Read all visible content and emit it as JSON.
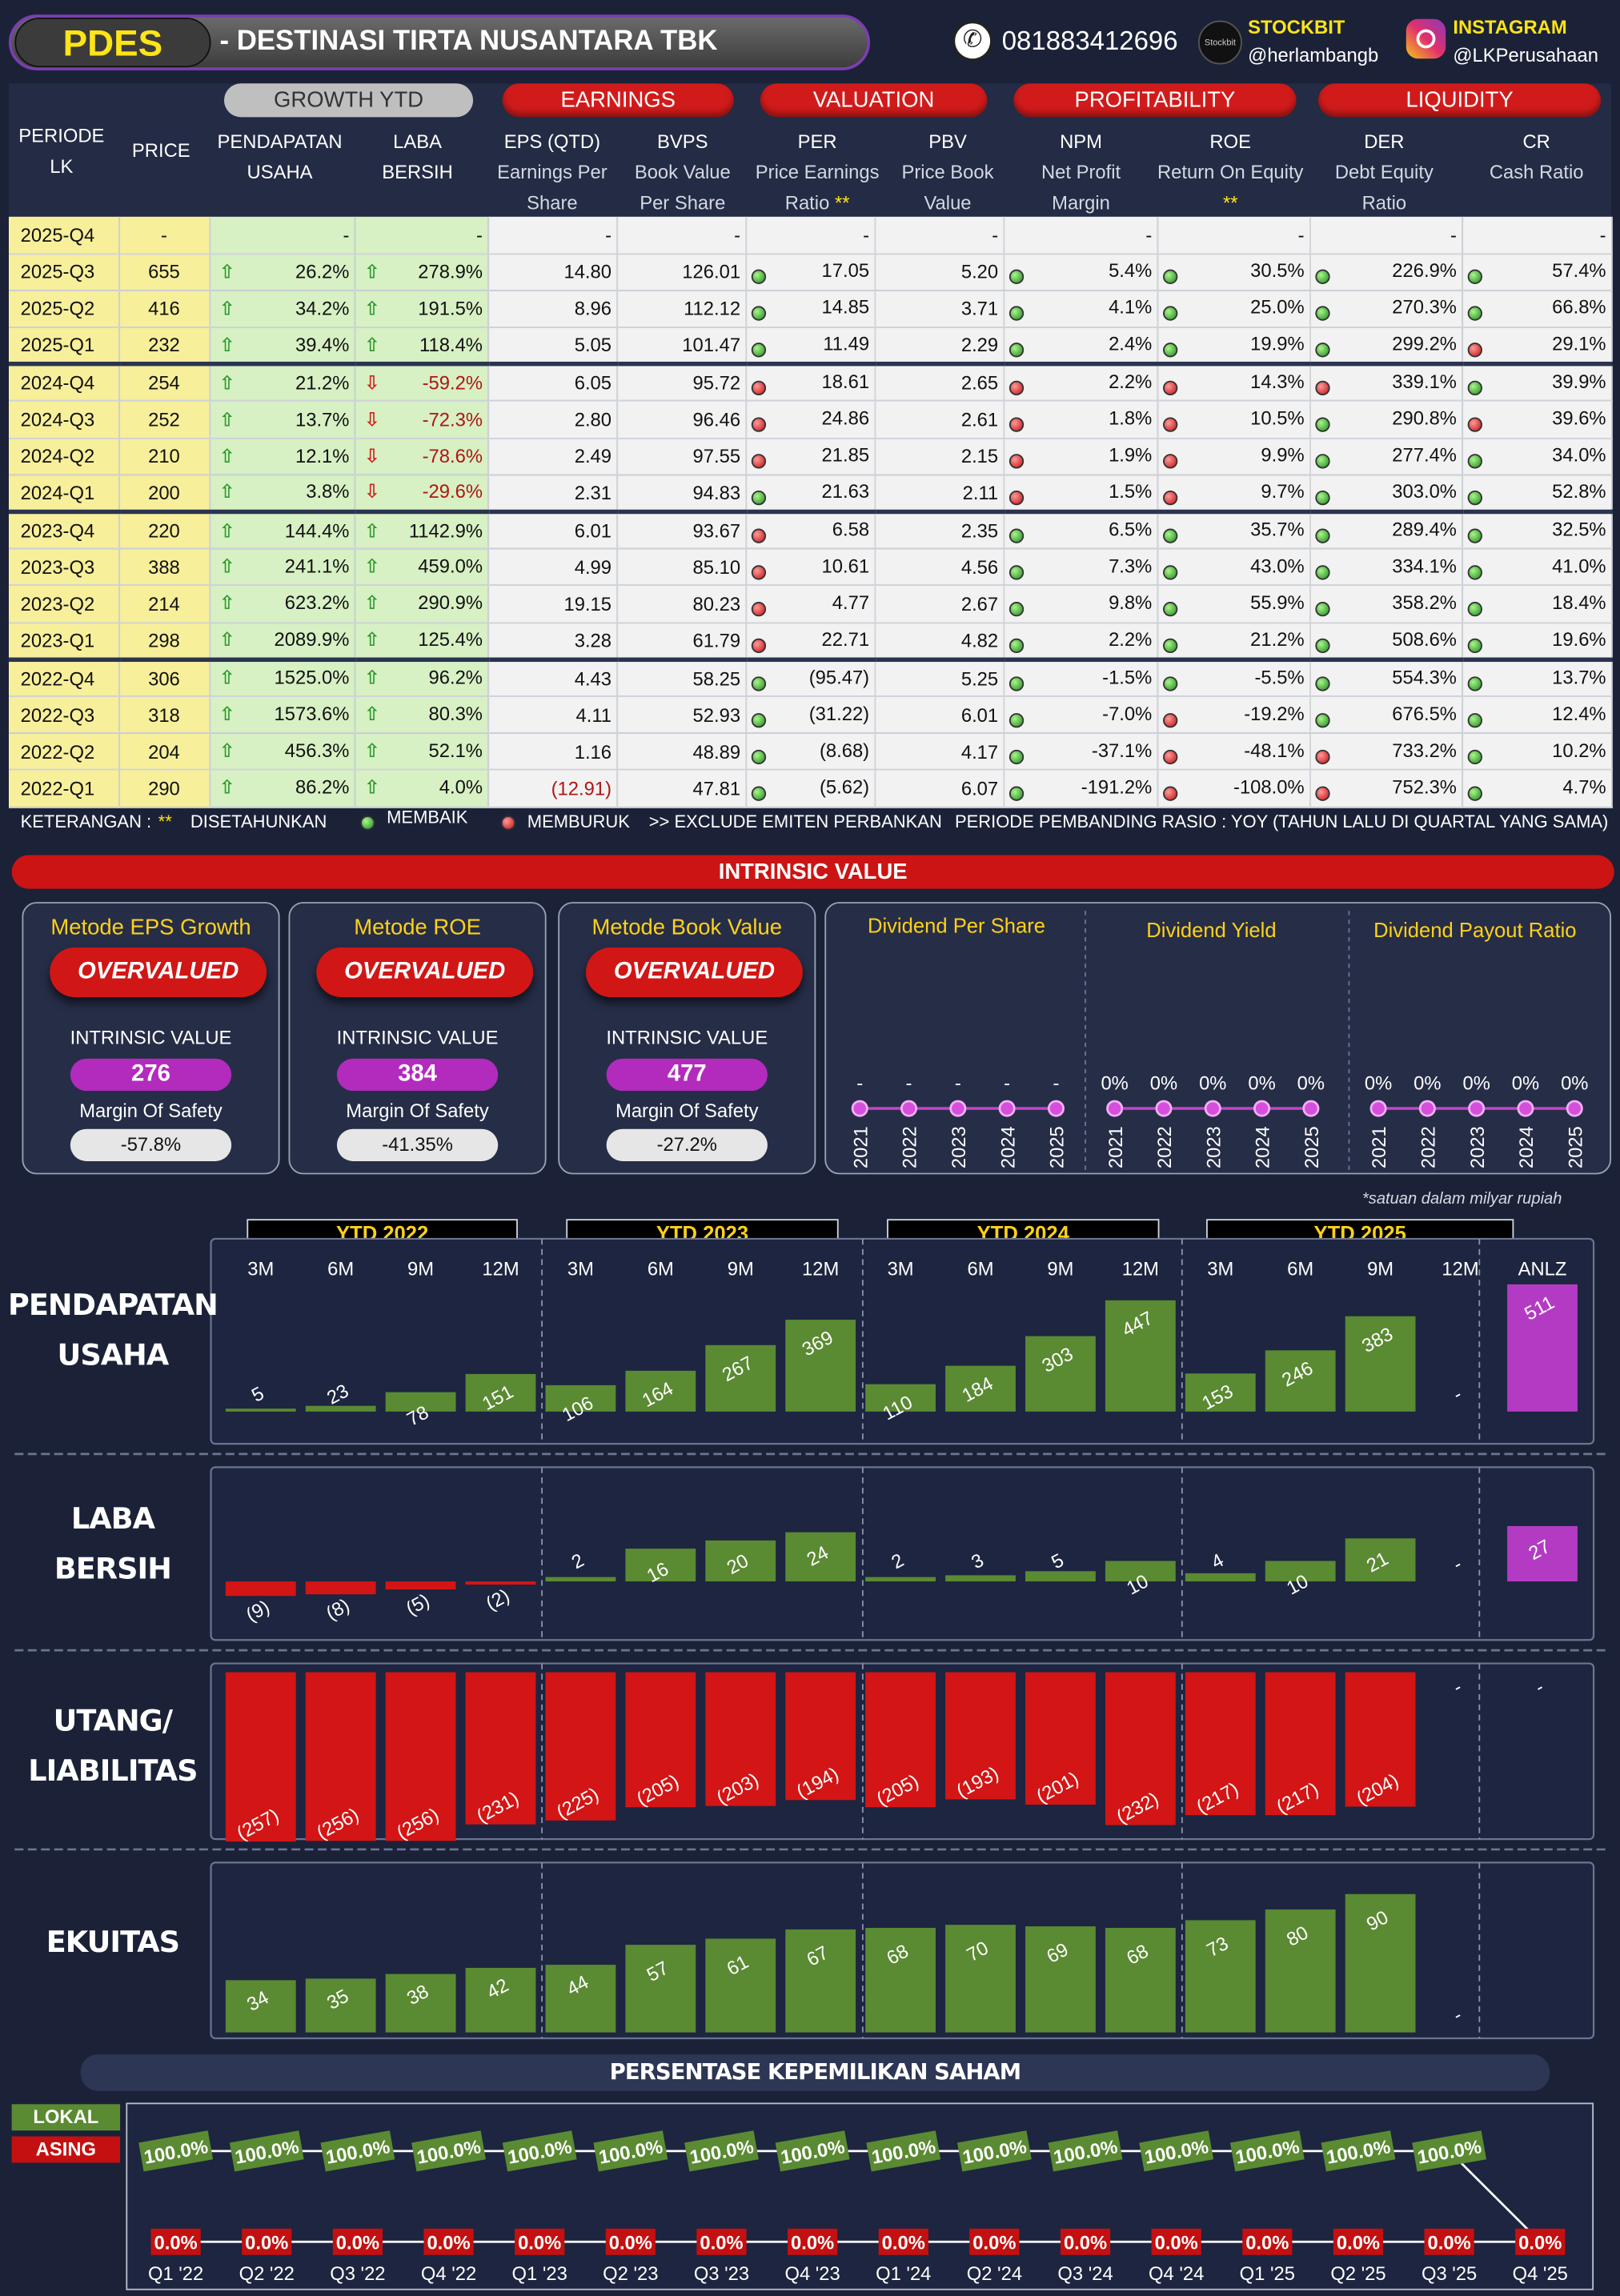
{
  "header": {
    "ticker": "PDES",
    "name": "-  DESTINASI TIRTA NUSANTARA TBK",
    "phone": "081883412696",
    "stockbit_label": "STOCKBIT",
    "stockbit_handle": "@herlambangb",
    "stockbit_logo": "Stockbit",
    "instagram_label": "INSTAGRAM",
    "instagram_handle": "@LKPerusahaan"
  },
  "groups": {
    "growth": "GROWTH YTD",
    "earnings": "EARNINGS",
    "valuation": "VALUATION",
    "profitability": "PROFITABILITY",
    "liquidity": "LIQUIDITY"
  },
  "columns": {
    "periode": "PERIODE LK",
    "price": "PRICE",
    "pu": "PENDAPATAN USAHA",
    "lb": "LABA BERSIH",
    "eps": "EPS (QTD)",
    "eps_sub": "Earnings Per Share",
    "bvps": "BVPS",
    "bvps_sub": "Book Value Per Share",
    "per": "PER",
    "per_sub": "Price Earnings Ratio",
    "per_star": "**",
    "pbv": "PBV",
    "pbv_sub": "Price Book Value",
    "npm": "NPM",
    "npm_sub": "Net Profit Margin",
    "roe": "ROE",
    "roe_sub": "Return On Equity",
    "roe_star": "**",
    "der": "DER",
    "der_sub": "Debt Equity Ratio",
    "cr": "CR",
    "cr_sub": "Cash Ratio"
  },
  "rows": [
    {
      "p": "2025-Q4",
      "price": "-",
      "pu": "-",
      "lb": "-",
      "eps": "-",
      "bvps": "-",
      "per": "-",
      "pbv": "-",
      "npm": "-",
      "roe": "-",
      "der": "-",
      "cr": "-",
      "pua": "",
      "lba": "",
      "perd": "",
      "npmd": "",
      "roed": "",
      "derd": "",
      "crd": ""
    },
    {
      "p": "2025-Q3",
      "price": "655",
      "pu": "26.2%",
      "lb": "278.9%",
      "eps": "14.80",
      "bvps": "126.01",
      "per": "17.05",
      "pbv": "5.20",
      "npm": "5.4%",
      "roe": "30.5%",
      "der": "226.9%",
      "cr": "57.4%",
      "pua": "up",
      "lba": "up",
      "perd": "g",
      "npmd": "g",
      "roed": "g",
      "derd": "g",
      "crd": "g"
    },
    {
      "p": "2025-Q2",
      "price": "416",
      "pu": "34.2%",
      "lb": "191.5%",
      "eps": "8.96",
      "bvps": "112.12",
      "per": "14.85",
      "pbv": "3.71",
      "npm": "4.1%",
      "roe": "25.0%",
      "der": "270.3%",
      "cr": "66.8%",
      "pua": "up",
      "lba": "up",
      "perd": "g",
      "npmd": "g",
      "roed": "g",
      "derd": "g",
      "crd": "g"
    },
    {
      "p": "2025-Q1",
      "price": "232",
      "pu": "39.4%",
      "lb": "118.4%",
      "eps": "5.05",
      "bvps": "101.47",
      "per": "11.49",
      "pbv": "2.29",
      "npm": "2.4%",
      "roe": "19.9%",
      "der": "299.2%",
      "cr": "29.1%",
      "pua": "up",
      "lba": "up",
      "perd": "g",
      "npmd": "g",
      "roed": "g",
      "derd": "g",
      "crd": "r"
    },
    {
      "p": "2024-Q4",
      "price": "254",
      "pu": "21.2%",
      "lb": "-59.2%",
      "eps": "6.05",
      "bvps": "95.72",
      "per": "18.61",
      "pbv": "2.65",
      "npm": "2.2%",
      "roe": "14.3%",
      "der": "339.1%",
      "cr": "39.9%",
      "pua": "up",
      "lba": "dn",
      "perd": "r",
      "npmd": "r",
      "roed": "r",
      "derd": "r",
      "crd": "g"
    },
    {
      "p": "2024-Q3",
      "price": "252",
      "pu": "13.7%",
      "lb": "-72.3%",
      "eps": "2.80",
      "bvps": "96.46",
      "per": "24.86",
      "pbv": "2.61",
      "npm": "1.8%",
      "roe": "10.5%",
      "der": "290.8%",
      "cr": "39.6%",
      "pua": "up",
      "lba": "dn",
      "perd": "r",
      "npmd": "r",
      "roed": "r",
      "derd": "g",
      "crd": "r"
    },
    {
      "p": "2024-Q2",
      "price": "210",
      "pu": "12.1%",
      "lb": "-78.6%",
      "eps": "2.49",
      "bvps": "97.55",
      "per": "21.85",
      "pbv": "2.15",
      "npm": "1.9%",
      "roe": "9.9%",
      "der": "277.4%",
      "cr": "34.0%",
      "pua": "up",
      "lba": "dn",
      "perd": "r",
      "npmd": "r",
      "roed": "r",
      "derd": "g",
      "crd": "g"
    },
    {
      "p": "2024-Q1",
      "price": "200",
      "pu": "3.8%",
      "lb": "-29.6%",
      "eps": "2.31",
      "bvps": "94.83",
      "per": "21.63",
      "pbv": "2.11",
      "npm": "1.5%",
      "roe": "9.7%",
      "der": "303.0%",
      "cr": "52.8%",
      "pua": "up",
      "lba": "dn",
      "perd": "g",
      "npmd": "r",
      "roed": "r",
      "derd": "g",
      "crd": "g"
    },
    {
      "p": "2023-Q4",
      "price": "220",
      "pu": "144.4%",
      "lb": "1142.9%",
      "eps": "6.01",
      "bvps": "93.67",
      "per": "6.58",
      "pbv": "2.35",
      "npm": "6.5%",
      "roe": "35.7%",
      "der": "289.4%",
      "cr": "32.5%",
      "pua": "up",
      "lba": "up",
      "perd": "r",
      "npmd": "g",
      "roed": "g",
      "derd": "g",
      "crd": "g"
    },
    {
      "p": "2023-Q3",
      "price": "388",
      "pu": "241.1%",
      "lb": "459.0%",
      "eps": "4.99",
      "bvps": "85.10",
      "per": "10.61",
      "pbv": "4.56",
      "npm": "7.3%",
      "roe": "43.0%",
      "der": "334.1%",
      "cr": "41.0%",
      "pua": "up",
      "lba": "up",
      "perd": "r",
      "npmd": "g",
      "roed": "g",
      "derd": "g",
      "crd": "g"
    },
    {
      "p": "2023-Q2",
      "price": "214",
      "pu": "623.2%",
      "lb": "290.9%",
      "eps": "19.15",
      "bvps": "80.23",
      "per": "4.77",
      "pbv": "2.67",
      "npm": "9.8%",
      "roe": "55.9%",
      "der": "358.2%",
      "cr": "18.4%",
      "pua": "up",
      "lba": "up",
      "perd": "r",
      "npmd": "g",
      "roed": "g",
      "derd": "g",
      "crd": "g"
    },
    {
      "p": "2023-Q1",
      "price": "298",
      "pu": "2089.9%",
      "lb": "125.4%",
      "eps": "3.28",
      "bvps": "61.79",
      "per": "22.71",
      "pbv": "4.82",
      "npm": "2.2%",
      "roe": "21.2%",
      "der": "508.6%",
      "cr": "19.6%",
      "pua": "up",
      "lba": "up",
      "perd": "r",
      "npmd": "g",
      "roed": "g",
      "derd": "g",
      "crd": "g"
    },
    {
      "p": "2022-Q4",
      "price": "306",
      "pu": "1525.0%",
      "lb": "96.2%",
      "eps": "4.43",
      "bvps": "58.25",
      "per": "(95.47)",
      "pbv": "5.25",
      "npm": "-1.5%",
      "roe": "-5.5%",
      "der": "554.3%",
      "cr": "13.7%",
      "pua": "up",
      "lba": "up",
      "perd": "g",
      "npmd": "g",
      "roed": "g",
      "derd": "g",
      "crd": "g"
    },
    {
      "p": "2022-Q3",
      "price": "318",
      "pu": "1573.6%",
      "lb": "80.3%",
      "eps": "4.11",
      "bvps": "52.93",
      "per": "(31.22)",
      "pbv": "6.01",
      "npm": "-7.0%",
      "roe": "-19.2%",
      "der": "676.5%",
      "cr": "12.4%",
      "pua": "up",
      "lba": "up",
      "perd": "g",
      "npmd": "g",
      "roed": "r",
      "derd": "g",
      "crd": "g"
    },
    {
      "p": "2022-Q2",
      "price": "204",
      "pu": "456.3%",
      "lb": "52.1%",
      "eps": "1.16",
      "bvps": "48.89",
      "per": "(8.68)",
      "pbv": "4.17",
      "npm": "-37.1%",
      "roe": "-48.1%",
      "der": "733.2%",
      "cr": "10.2%",
      "pua": "up",
      "lba": "up",
      "perd": "g",
      "npmd": "g",
      "roed": "r",
      "derd": "r",
      "crd": "g"
    },
    {
      "p": "2022-Q1",
      "price": "290",
      "pu": "86.2%",
      "lb": "4.0%",
      "eps": "(12.91)",
      "bvps": "47.81",
      "per": "(5.62)",
      "pbv": "6.07",
      "npm": "-191.2%",
      "roe": "-108.0%",
      "der": "752.3%",
      "cr": "4.7%",
      "pua": "up",
      "lba": "up",
      "perd": "g",
      "npmd": "g",
      "roed": "r",
      "derd": "r",
      "crd": "g"
    }
  ],
  "legend": {
    "keterangan": "KETERANGAN :",
    "stars": "**",
    "disetahunkan": "DISETAHUNKAN",
    "membaik": "MEMBAIK",
    "memburuk": "MEMBURUK",
    "exclude": ">> EXCLUDE EMITEN PERBANKAN",
    "periode": "PERIODE PEMBANDING RASIO : YOY (TAHUN LALU DI QUARTAL YANG SAMA)"
  },
  "intrinsic": {
    "title": "INTRINSIC VALUE",
    "iv_label": "INTRINSIC VALUE",
    "mos_label": "Margin Of Safety",
    "methods": [
      {
        "title": "Metode EPS Growth",
        "status": "OVERVALUED",
        "value": "276",
        "mos": "-57.8%"
      },
      {
        "title": "Metode ROE",
        "status": "OVERVALUED",
        "value": "384",
        "mos": "-41.35%"
      },
      {
        "title": "Metode Book Value",
        "status": "OVERVALUED",
        "value": "477",
        "mos": "-27.2%"
      }
    ]
  },
  "dividend": {
    "years": [
      "2021",
      "2022",
      "2023",
      "2024",
      "2025"
    ],
    "panels": [
      {
        "title": "Dividend Per Share",
        "values": [
          "-",
          "-",
          "-",
          "-",
          "-"
        ]
      },
      {
        "title": "Dividend Yield",
        "values": [
          "0%",
          "0%",
          "0%",
          "0%",
          "0%"
        ]
      },
      {
        "title": "Dividend Payout Ratio",
        "values": [
          "0%",
          "0%",
          "0%",
          "0%",
          "0%"
        ]
      }
    ]
  },
  "note": "*satuan dalam milyar rupiah",
  "colors": {
    "pos": "#5a8a32",
    "neg": "#d31515",
    "anlz": "#b33bc4",
    "lokal": "#5a8a32",
    "asing": "#c41010"
  },
  "chart_data": [
    {
      "type": "bar",
      "title": "PENDAPATAN USAHA",
      "groups": [
        "YTD 2022",
        "YTD 2023",
        "YTD 2024",
        "YTD 2025"
      ],
      "categories": [
        "3M",
        "6M",
        "9M",
        "12M",
        "3M",
        "6M",
        "9M",
        "12M",
        "3M",
        "6M",
        "9M",
        "12M",
        "3M",
        "6M",
        "9M",
        "12M",
        "ANLZ"
      ],
      "values": [
        5,
        23,
        78,
        151,
        106,
        164,
        267,
        369,
        110,
        184,
        303,
        447,
        153,
        246,
        383,
        null,
        511
      ],
      "labels": [
        "5",
        "23",
        "78",
        "151",
        "106",
        "164",
        "267",
        "369",
        "110",
        "184",
        "303",
        "447",
        "153",
        "246",
        "383",
        "-",
        "511"
      ]
    },
    {
      "type": "bar",
      "title": "LABA BERSIH",
      "categories": [
        "3M",
        "6M",
        "9M",
        "12M",
        "3M",
        "6M",
        "9M",
        "12M",
        "3M",
        "6M",
        "9M",
        "12M",
        "3M",
        "6M",
        "9M",
        "12M",
        "ANLZ"
      ],
      "values": [
        -9,
        -8,
        -5,
        -2,
        2,
        16,
        20,
        24,
        2,
        3,
        5,
        10,
        4,
        10,
        21,
        null,
        27
      ],
      "labels": [
        "(9)",
        "(8)",
        "(5)",
        "(2)",
        "2",
        "16",
        "20",
        "24",
        "2",
        "3",
        "5",
        "10",
        "4",
        "10",
        "21",
        "-",
        "27"
      ]
    },
    {
      "type": "bar",
      "title": "UTANG/ LIABILITAS",
      "categories": [
        "3M",
        "6M",
        "9M",
        "12M",
        "3M",
        "6M",
        "9M",
        "12M",
        "3M",
        "6M",
        "9M",
        "12M",
        "3M",
        "6M",
        "9M",
        "12M",
        "ANLZ"
      ],
      "values": [
        -257,
        -256,
        -256,
        -231,
        -225,
        -205,
        -203,
        -194,
        -205,
        -193,
        -201,
        -232,
        -217,
        -217,
        -204,
        null,
        null
      ],
      "labels": [
        "(257)",
        "(256)",
        "(256)",
        "(231)",
        "(225)",
        "(205)",
        "(203)",
        "(194)",
        "(205)",
        "(193)",
        "(201)",
        "(232)",
        "(217)",
        "(217)",
        "(204)",
        "-",
        "-"
      ]
    },
    {
      "type": "bar",
      "title": "EKUITAS",
      "categories": [
        "3M",
        "6M",
        "9M",
        "12M",
        "3M",
        "6M",
        "9M",
        "12M",
        "3M",
        "6M",
        "9M",
        "12M",
        "3M",
        "6M",
        "9M",
        "12M",
        "ANLZ"
      ],
      "values": [
        34,
        35,
        38,
        42,
        44,
        57,
        61,
        67,
        68,
        70,
        69,
        68,
        73,
        80,
        90,
        null,
        null
      ],
      "labels": [
        "34",
        "35",
        "38",
        "42",
        "44",
        "57",
        "61",
        "67",
        "68",
        "70",
        "69",
        "68",
        "73",
        "80",
        "90",
        "-",
        ""
      ]
    },
    {
      "type": "line",
      "title": "PERSENTASE KEPEMILIKAN SAHAM",
      "x": [
        "Q1 '22",
        "Q2 '22",
        "Q3 '22",
        "Q4 '22",
        "Q1 '23",
        "Q2 '23",
        "Q3 '23",
        "Q4 '23",
        "Q1 '24",
        "Q2 '24",
        "Q3 '24",
        "Q4 '24",
        "Q1 '25",
        "Q2 '25",
        "Q3 '25",
        "Q4 '25"
      ],
      "series": [
        {
          "name": "LOKAL",
          "values": [
            100,
            100,
            100,
            100,
            100,
            100,
            100,
            100,
            100,
            100,
            100,
            100,
            100,
            100,
            100,
            0
          ],
          "labels": [
            "100.0%",
            "100.0%",
            "100.0%",
            "100.0%",
            "100.0%",
            "100.0%",
            "100.0%",
            "100.0%",
            "100.0%",
            "100.0%",
            "100.0%",
            "100.0%",
            "100.0%",
            "100.0%",
            "100.0%",
            ""
          ]
        },
        {
          "name": "ASING",
          "values": [
            0,
            0,
            0,
            0,
            0,
            0,
            0,
            0,
            0,
            0,
            0,
            0,
            0,
            0,
            0,
            0
          ],
          "labels": [
            "0.0%",
            "0.0%",
            "0.0%",
            "0.0%",
            "0.0%",
            "0.0%",
            "0.0%",
            "0.0%",
            "0.0%",
            "0.0%",
            "0.0%",
            "0.0%",
            "0.0%",
            "0.0%",
            "0.0%",
            "0.0%"
          ]
        }
      ]
    }
  ]
}
